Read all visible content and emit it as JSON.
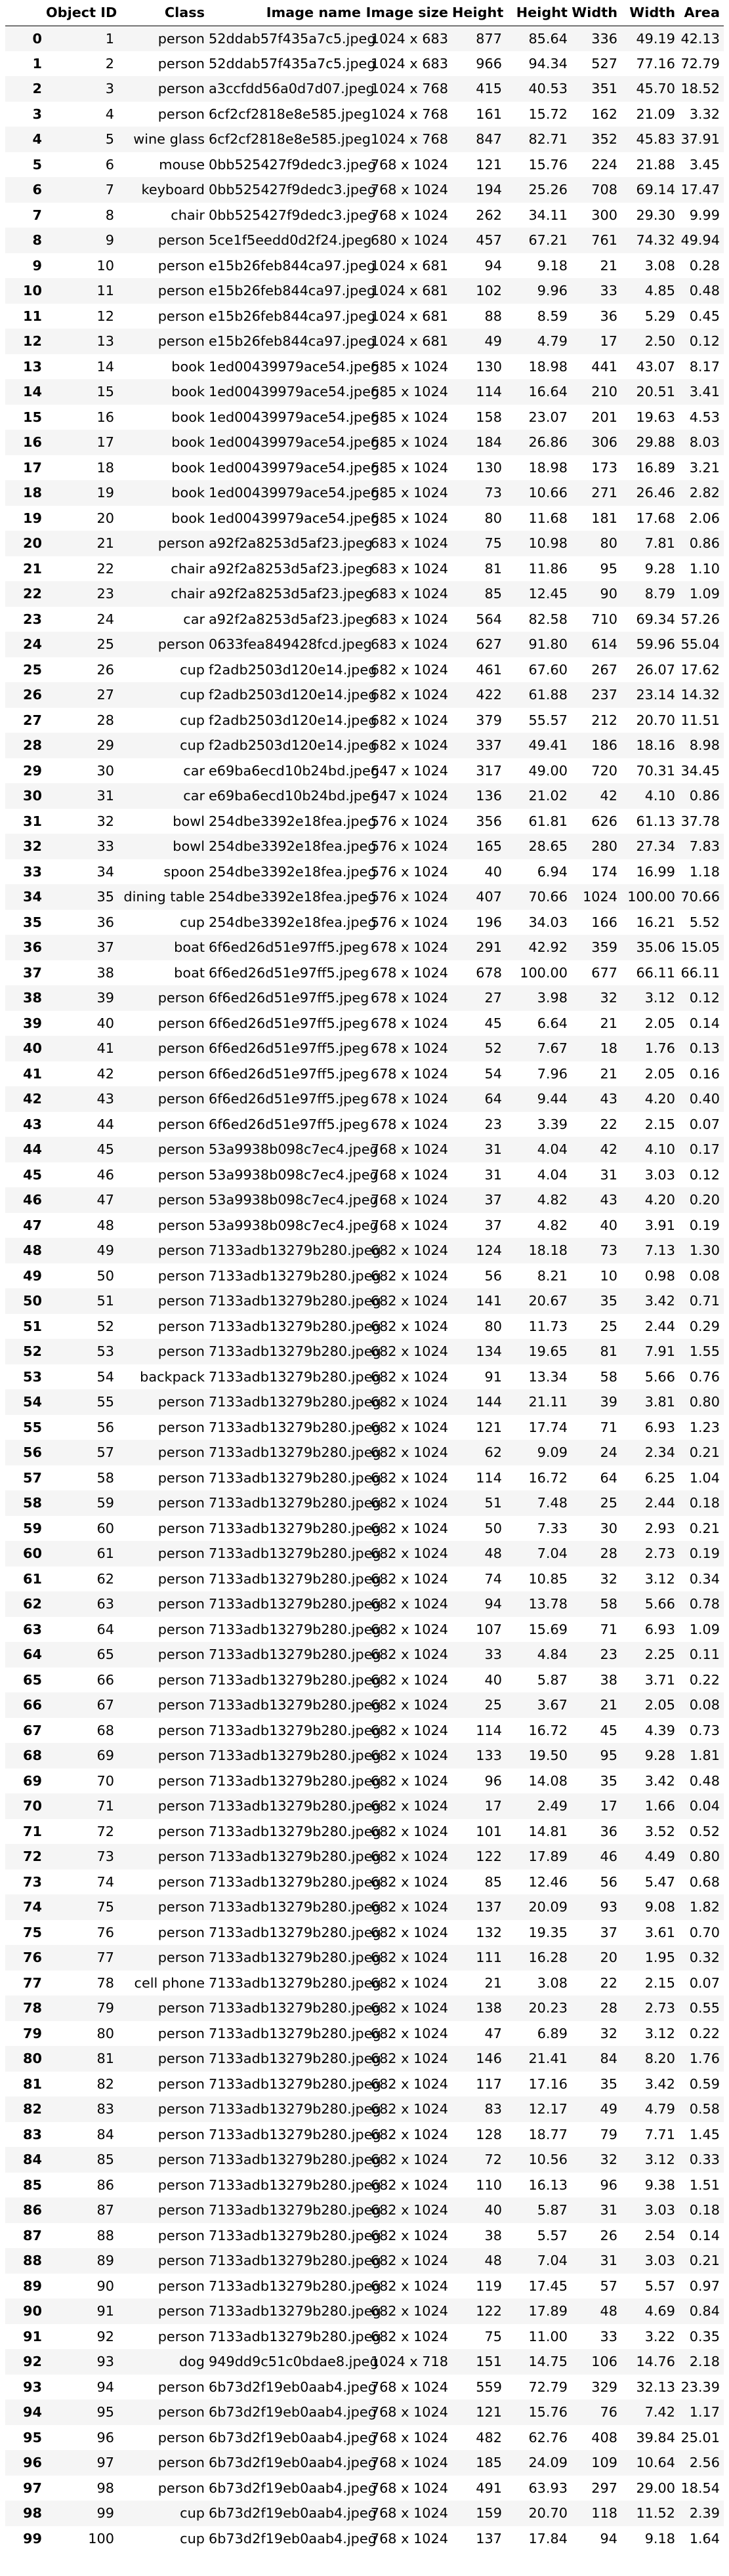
{
  "columns": [
    "",
    "Object ID",
    "Class",
    "Image name",
    "Image size",
    "Height",
    "Height",
    "Width",
    "Width",
    "Area"
  ],
  "rows": [
    [
      "0",
      "1",
      "person",
      "52ddab57f435a7c5.jpeg",
      "1024 x 683",
      "877",
      "85.64",
      "336",
      "49.19",
      "42.13"
    ],
    [
      "1",
      "2",
      "person",
      "52ddab57f435a7c5.jpeg",
      "1024 x 683",
      "966",
      "94.34",
      "527",
      "77.16",
      "72.79"
    ],
    [
      "2",
      "3",
      "person",
      "a3ccfdd56a0d7d07.jpeg",
      "1024 x 768",
      "415",
      "40.53",
      "351",
      "45.70",
      "18.52"
    ],
    [
      "3",
      "4",
      "person",
      "6cf2cf2818e8e585.jpeg",
      "1024 x 768",
      "161",
      "15.72",
      "162",
      "21.09",
      "3.32"
    ],
    [
      "4",
      "5",
      "wine glass",
      "6cf2cf2818e8e585.jpeg",
      "1024 x 768",
      "847",
      "82.71",
      "352",
      "45.83",
      "37.91"
    ],
    [
      "5",
      "6",
      "mouse",
      "0bb525427f9dedc3.jpeg",
      "768 x 1024",
      "121",
      "15.76",
      "224",
      "21.88",
      "3.45"
    ],
    [
      "6",
      "7",
      "keyboard",
      "0bb525427f9dedc3.jpeg",
      "768 x 1024",
      "194",
      "25.26",
      "708",
      "69.14",
      "17.47"
    ],
    [
      "7",
      "8",
      "chair",
      "0bb525427f9dedc3.jpeg",
      "768 x 1024",
      "262",
      "34.11",
      "300",
      "29.30",
      "9.99"
    ],
    [
      "8",
      "9",
      "person",
      "5ce1f5eedd0d2f24.jpeg",
      "680 x 1024",
      "457",
      "67.21",
      "761",
      "74.32",
      "49.94"
    ],
    [
      "9",
      "10",
      "person",
      "e15b26feb844ca97.jpeg",
      "1024 x 681",
      "94",
      "9.18",
      "21",
      "3.08",
      "0.28"
    ],
    [
      "10",
      "11",
      "person",
      "e15b26feb844ca97.jpeg",
      "1024 x 681",
      "102",
      "9.96",
      "33",
      "4.85",
      "0.48"
    ],
    [
      "11",
      "12",
      "person",
      "e15b26feb844ca97.jpeg",
      "1024 x 681",
      "88",
      "8.59",
      "36",
      "5.29",
      "0.45"
    ],
    [
      "12",
      "13",
      "person",
      "e15b26feb844ca97.jpeg",
      "1024 x 681",
      "49",
      "4.79",
      "17",
      "2.50",
      "0.12"
    ],
    [
      "13",
      "14",
      "book",
      "1ed00439979ace54.jpeg",
      "685 x 1024",
      "130",
      "18.98",
      "441",
      "43.07",
      "8.17"
    ],
    [
      "14",
      "15",
      "book",
      "1ed00439979ace54.jpeg",
      "685 x 1024",
      "114",
      "16.64",
      "210",
      "20.51",
      "3.41"
    ],
    [
      "15",
      "16",
      "book",
      "1ed00439979ace54.jpeg",
      "685 x 1024",
      "158",
      "23.07",
      "201",
      "19.63",
      "4.53"
    ],
    [
      "16",
      "17",
      "book",
      "1ed00439979ace54.jpeg",
      "685 x 1024",
      "184",
      "26.86",
      "306",
      "29.88",
      "8.03"
    ],
    [
      "17",
      "18",
      "book",
      "1ed00439979ace54.jpeg",
      "685 x 1024",
      "130",
      "18.98",
      "173",
      "16.89",
      "3.21"
    ],
    [
      "18",
      "19",
      "book",
      "1ed00439979ace54.jpeg",
      "685 x 1024",
      "73",
      "10.66",
      "271",
      "26.46",
      "2.82"
    ],
    [
      "19",
      "20",
      "book",
      "1ed00439979ace54.jpeg",
      "685 x 1024",
      "80",
      "11.68",
      "181",
      "17.68",
      "2.06"
    ],
    [
      "20",
      "21",
      "person",
      "a92f2a8253d5af23.jpeg",
      "683 x 1024",
      "75",
      "10.98",
      "80",
      "7.81",
      "0.86"
    ],
    [
      "21",
      "22",
      "chair",
      "a92f2a8253d5af23.jpeg",
      "683 x 1024",
      "81",
      "11.86",
      "95",
      "9.28",
      "1.10"
    ],
    [
      "22",
      "23",
      "chair",
      "a92f2a8253d5af23.jpeg",
      "683 x 1024",
      "85",
      "12.45",
      "90",
      "8.79",
      "1.09"
    ],
    [
      "23",
      "24",
      "car",
      "a92f2a8253d5af23.jpeg",
      "683 x 1024",
      "564",
      "82.58",
      "710",
      "69.34",
      "57.26"
    ],
    [
      "24",
      "25",
      "person",
      "0633fea849428fcd.jpeg",
      "683 x 1024",
      "627",
      "91.80",
      "614",
      "59.96",
      "55.04"
    ],
    [
      "25",
      "26",
      "cup",
      "f2adb2503d120e14.jpeg",
      "682 x 1024",
      "461",
      "67.60",
      "267",
      "26.07",
      "17.62"
    ],
    [
      "26",
      "27",
      "cup",
      "f2adb2503d120e14.jpeg",
      "682 x 1024",
      "422",
      "61.88",
      "237",
      "23.14",
      "14.32"
    ],
    [
      "27",
      "28",
      "cup",
      "f2adb2503d120e14.jpeg",
      "682 x 1024",
      "379",
      "55.57",
      "212",
      "20.70",
      "11.51"
    ],
    [
      "28",
      "29",
      "cup",
      "f2adb2503d120e14.jpeg",
      "682 x 1024",
      "337",
      "49.41",
      "186",
      "18.16",
      "8.98"
    ],
    [
      "29",
      "30",
      "car",
      "e69ba6ecd10b24bd.jpeg",
      "647 x 1024",
      "317",
      "49.00",
      "720",
      "70.31",
      "34.45"
    ],
    [
      "30",
      "31",
      "car",
      "e69ba6ecd10b24bd.jpeg",
      "647 x 1024",
      "136",
      "21.02",
      "42",
      "4.10",
      "0.86"
    ],
    [
      "31",
      "32",
      "bowl",
      "254dbe3392e18fea.jpeg",
      "576 x 1024",
      "356",
      "61.81",
      "626",
      "61.13",
      "37.78"
    ],
    [
      "32",
      "33",
      "bowl",
      "254dbe3392e18fea.jpeg",
      "576 x 1024",
      "165",
      "28.65",
      "280",
      "27.34",
      "7.83"
    ],
    [
      "33",
      "34",
      "spoon",
      "254dbe3392e18fea.jpeg",
      "576 x 1024",
      "40",
      "6.94",
      "174",
      "16.99",
      "1.18"
    ],
    [
      "34",
      "35",
      "dining table",
      "254dbe3392e18fea.jpeg",
      "576 x 1024",
      "407",
      "70.66",
      "1024",
      "100.00",
      "70.66"
    ],
    [
      "35",
      "36",
      "cup",
      "254dbe3392e18fea.jpeg",
      "576 x 1024",
      "196",
      "34.03",
      "166",
      "16.21",
      "5.52"
    ],
    [
      "36",
      "37",
      "boat",
      "6f6ed26d51e97ff5.jpeg",
      "678 x 1024",
      "291",
      "42.92",
      "359",
      "35.06",
      "15.05"
    ],
    [
      "37",
      "38",
      "boat",
      "6f6ed26d51e97ff5.jpeg",
      "678 x 1024",
      "678",
      "100.00",
      "677",
      "66.11",
      "66.11"
    ],
    [
      "38",
      "39",
      "person",
      "6f6ed26d51e97ff5.jpeg",
      "678 x 1024",
      "27",
      "3.98",
      "32",
      "3.12",
      "0.12"
    ],
    [
      "39",
      "40",
      "person",
      "6f6ed26d51e97ff5.jpeg",
      "678 x 1024",
      "45",
      "6.64",
      "21",
      "2.05",
      "0.14"
    ],
    [
      "40",
      "41",
      "person",
      "6f6ed26d51e97ff5.jpeg",
      "678 x 1024",
      "52",
      "7.67",
      "18",
      "1.76",
      "0.13"
    ],
    [
      "41",
      "42",
      "person",
      "6f6ed26d51e97ff5.jpeg",
      "678 x 1024",
      "54",
      "7.96",
      "21",
      "2.05",
      "0.16"
    ],
    [
      "42",
      "43",
      "person",
      "6f6ed26d51e97ff5.jpeg",
      "678 x 1024",
      "64",
      "9.44",
      "43",
      "4.20",
      "0.40"
    ],
    [
      "43",
      "44",
      "person",
      "6f6ed26d51e97ff5.jpeg",
      "678 x 1024",
      "23",
      "3.39",
      "22",
      "2.15",
      "0.07"
    ],
    [
      "44",
      "45",
      "person",
      "53a9938b098c7ec4.jpeg",
      "768 x 1024",
      "31",
      "4.04",
      "42",
      "4.10",
      "0.17"
    ],
    [
      "45",
      "46",
      "person",
      "53a9938b098c7ec4.jpeg",
      "768 x 1024",
      "31",
      "4.04",
      "31",
      "3.03",
      "0.12"
    ],
    [
      "46",
      "47",
      "person",
      "53a9938b098c7ec4.jpeg",
      "768 x 1024",
      "37",
      "4.82",
      "43",
      "4.20",
      "0.20"
    ],
    [
      "47",
      "48",
      "person",
      "53a9938b098c7ec4.jpeg",
      "768 x 1024",
      "37",
      "4.82",
      "40",
      "3.91",
      "0.19"
    ],
    [
      "48",
      "49",
      "person",
      "7133adb13279b280.jpeg",
      "682 x 1024",
      "124",
      "18.18",
      "73",
      "7.13",
      "1.30"
    ],
    [
      "49",
      "50",
      "person",
      "7133adb13279b280.jpeg",
      "682 x 1024",
      "56",
      "8.21",
      "10",
      "0.98",
      "0.08"
    ],
    [
      "50",
      "51",
      "person",
      "7133adb13279b280.jpeg",
      "682 x 1024",
      "141",
      "20.67",
      "35",
      "3.42",
      "0.71"
    ],
    [
      "51",
      "52",
      "person",
      "7133adb13279b280.jpeg",
      "682 x 1024",
      "80",
      "11.73",
      "25",
      "2.44",
      "0.29"
    ],
    [
      "52",
      "53",
      "person",
      "7133adb13279b280.jpeg",
      "682 x 1024",
      "134",
      "19.65",
      "81",
      "7.91",
      "1.55"
    ],
    [
      "53",
      "54",
      "backpack",
      "7133adb13279b280.jpeg",
      "682 x 1024",
      "91",
      "13.34",
      "58",
      "5.66",
      "0.76"
    ],
    [
      "54",
      "55",
      "person",
      "7133adb13279b280.jpeg",
      "682 x 1024",
      "144",
      "21.11",
      "39",
      "3.81",
      "0.80"
    ],
    [
      "55",
      "56",
      "person",
      "7133adb13279b280.jpeg",
      "682 x 1024",
      "121",
      "17.74",
      "71",
      "6.93",
      "1.23"
    ],
    [
      "56",
      "57",
      "person",
      "7133adb13279b280.jpeg",
      "682 x 1024",
      "62",
      "9.09",
      "24",
      "2.34",
      "0.21"
    ],
    [
      "57",
      "58",
      "person",
      "7133adb13279b280.jpeg",
      "682 x 1024",
      "114",
      "16.72",
      "64",
      "6.25",
      "1.04"
    ],
    [
      "58",
      "59",
      "person",
      "7133adb13279b280.jpeg",
      "682 x 1024",
      "51",
      "7.48",
      "25",
      "2.44",
      "0.18"
    ],
    [
      "59",
      "60",
      "person",
      "7133adb13279b280.jpeg",
      "682 x 1024",
      "50",
      "7.33",
      "30",
      "2.93",
      "0.21"
    ],
    [
      "60",
      "61",
      "person",
      "7133adb13279b280.jpeg",
      "682 x 1024",
      "48",
      "7.04",
      "28",
      "2.73",
      "0.19"
    ],
    [
      "61",
      "62",
      "person",
      "7133adb13279b280.jpeg",
      "682 x 1024",
      "74",
      "10.85",
      "32",
      "3.12",
      "0.34"
    ],
    [
      "62",
      "63",
      "person",
      "7133adb13279b280.jpeg",
      "682 x 1024",
      "94",
      "13.78",
      "58",
      "5.66",
      "0.78"
    ],
    [
      "63",
      "64",
      "person",
      "7133adb13279b280.jpeg",
      "682 x 1024",
      "107",
      "15.69",
      "71",
      "6.93",
      "1.09"
    ],
    [
      "64",
      "65",
      "person",
      "7133adb13279b280.jpeg",
      "682 x 1024",
      "33",
      "4.84",
      "23",
      "2.25",
      "0.11"
    ],
    [
      "65",
      "66",
      "person",
      "7133adb13279b280.jpeg",
      "682 x 1024",
      "40",
      "5.87",
      "38",
      "3.71",
      "0.22"
    ],
    [
      "66",
      "67",
      "person",
      "7133adb13279b280.jpeg",
      "682 x 1024",
      "25",
      "3.67",
      "21",
      "2.05",
      "0.08"
    ],
    [
      "67",
      "68",
      "person",
      "7133adb13279b280.jpeg",
      "682 x 1024",
      "114",
      "16.72",
      "45",
      "4.39",
      "0.73"
    ],
    [
      "68",
      "69",
      "person",
      "7133adb13279b280.jpeg",
      "682 x 1024",
      "133",
      "19.50",
      "95",
      "9.28",
      "1.81"
    ],
    [
      "69",
      "70",
      "person",
      "7133adb13279b280.jpeg",
      "682 x 1024",
      "96",
      "14.08",
      "35",
      "3.42",
      "0.48"
    ],
    [
      "70",
      "71",
      "person",
      "7133adb13279b280.jpeg",
      "682 x 1024",
      "17",
      "2.49",
      "17",
      "1.66",
      "0.04"
    ],
    [
      "71",
      "72",
      "person",
      "7133adb13279b280.jpeg",
      "682 x 1024",
      "101",
      "14.81",
      "36",
      "3.52",
      "0.52"
    ],
    [
      "72",
      "73",
      "person",
      "7133adb13279b280.jpeg",
      "682 x 1024",
      "122",
      "17.89",
      "46",
      "4.49",
      "0.80"
    ],
    [
      "73",
      "74",
      "person",
      "7133adb13279b280.jpeg",
      "682 x 1024",
      "85",
      "12.46",
      "56",
      "5.47",
      "0.68"
    ],
    [
      "74",
      "75",
      "person",
      "7133adb13279b280.jpeg",
      "682 x 1024",
      "137",
      "20.09",
      "93",
      "9.08",
      "1.82"
    ],
    [
      "75",
      "76",
      "person",
      "7133adb13279b280.jpeg",
      "682 x 1024",
      "132",
      "19.35",
      "37",
      "3.61",
      "0.70"
    ],
    [
      "76",
      "77",
      "person",
      "7133adb13279b280.jpeg",
      "682 x 1024",
      "111",
      "16.28",
      "20",
      "1.95",
      "0.32"
    ],
    [
      "77",
      "78",
      "cell phone",
      "7133adb13279b280.jpeg",
      "682 x 1024",
      "21",
      "3.08",
      "22",
      "2.15",
      "0.07"
    ],
    [
      "78",
      "79",
      "person",
      "7133adb13279b280.jpeg",
      "682 x 1024",
      "138",
      "20.23",
      "28",
      "2.73",
      "0.55"
    ],
    [
      "79",
      "80",
      "person",
      "7133adb13279b280.jpeg",
      "682 x 1024",
      "47",
      "6.89",
      "32",
      "3.12",
      "0.22"
    ],
    [
      "80",
      "81",
      "person",
      "7133adb13279b280.jpeg",
      "682 x 1024",
      "146",
      "21.41",
      "84",
      "8.20",
      "1.76"
    ],
    [
      "81",
      "82",
      "person",
      "7133adb13279b280.jpeg",
      "682 x 1024",
      "117",
      "17.16",
      "35",
      "3.42",
      "0.59"
    ],
    [
      "82",
      "83",
      "person",
      "7133adb13279b280.jpeg",
      "682 x 1024",
      "83",
      "12.17",
      "49",
      "4.79",
      "0.58"
    ],
    [
      "83",
      "84",
      "person",
      "7133adb13279b280.jpeg",
      "682 x 1024",
      "128",
      "18.77",
      "79",
      "7.71",
      "1.45"
    ],
    [
      "84",
      "85",
      "person",
      "7133adb13279b280.jpeg",
      "682 x 1024",
      "72",
      "10.56",
      "32",
      "3.12",
      "0.33"
    ],
    [
      "85",
      "86",
      "person",
      "7133adb13279b280.jpeg",
      "682 x 1024",
      "110",
      "16.13",
      "96",
      "9.38",
      "1.51"
    ],
    [
      "86",
      "87",
      "person",
      "7133adb13279b280.jpeg",
      "682 x 1024",
      "40",
      "5.87",
      "31",
      "3.03",
      "0.18"
    ],
    [
      "87",
      "88",
      "person",
      "7133adb13279b280.jpeg",
      "682 x 1024",
      "38",
      "5.57",
      "26",
      "2.54",
      "0.14"
    ],
    [
      "88",
      "89",
      "person",
      "7133adb13279b280.jpeg",
      "682 x 1024",
      "48",
      "7.04",
      "31",
      "3.03",
      "0.21"
    ],
    [
      "89",
      "90",
      "person",
      "7133adb13279b280.jpeg",
      "682 x 1024",
      "119",
      "17.45",
      "57",
      "5.57",
      "0.97"
    ],
    [
      "90",
      "91",
      "person",
      "7133adb13279b280.jpeg",
      "682 x 1024",
      "122",
      "17.89",
      "48",
      "4.69",
      "0.84"
    ],
    [
      "91",
      "92",
      "person",
      "7133adb13279b280.jpeg",
      "682 x 1024",
      "75",
      "11.00",
      "33",
      "3.22",
      "0.35"
    ],
    [
      "92",
      "93",
      "dog",
      "949dd9c51c0bdae8.jpeg",
      "1024 x 718",
      "151",
      "14.75",
      "106",
      "14.76",
      "2.18"
    ],
    [
      "93",
      "94",
      "person",
      "6b73d2f19eb0aab4.jpeg",
      "768 x 1024",
      "559",
      "72.79",
      "329",
      "32.13",
      "23.39"
    ],
    [
      "94",
      "95",
      "person",
      "6b73d2f19eb0aab4.jpeg",
      "768 x 1024",
      "121",
      "15.76",
      "76",
      "7.42",
      "1.17"
    ],
    [
      "95",
      "96",
      "person",
      "6b73d2f19eb0aab4.jpeg",
      "768 x 1024",
      "482",
      "62.76",
      "408",
      "39.84",
      "25.01"
    ],
    [
      "96",
      "97",
      "person",
      "6b73d2f19eb0aab4.jpeg",
      "768 x 1024",
      "185",
      "24.09",
      "109",
      "10.64",
      "2.56"
    ],
    [
      "97",
      "98",
      "person",
      "6b73d2f19eb0aab4.jpeg",
      "768 x 1024",
      "491",
      "63.93",
      "297",
      "29.00",
      "18.54"
    ],
    [
      "98",
      "99",
      "cup",
      "6b73d2f19eb0aab4.jpeg",
      "768 x 1024",
      "159",
      "20.70",
      "118",
      "11.52",
      "2.39"
    ],
    [
      "99",
      "100",
      "cup",
      "6b73d2f19eb0aab4.jpeg",
      "768 x 1024",
      "137",
      "17.84",
      "94",
      "9.18",
      "1.64"
    ]
  ]
}
